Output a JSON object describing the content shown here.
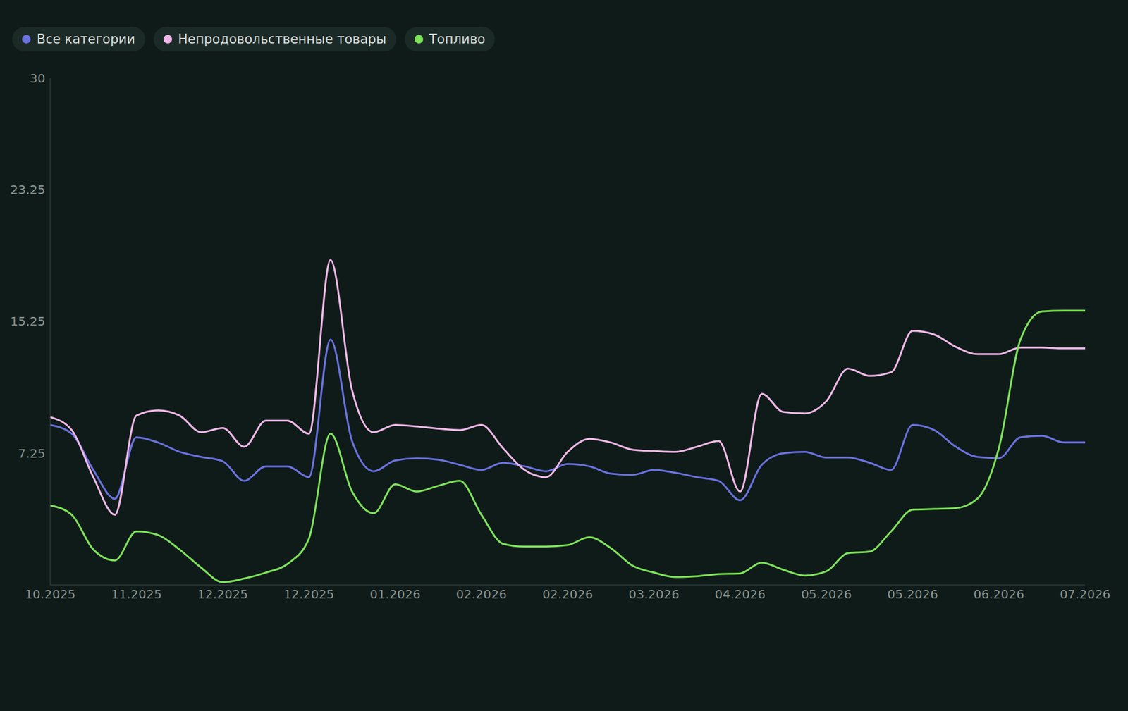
{
  "chart_data": {
    "type": "line",
    "categories": [
      "10.2025",
      null,
      null,
      null,
      "11.2025",
      null,
      null,
      null,
      "12.2025",
      null,
      null,
      null,
      "12.2025",
      null,
      null,
      null,
      "01.2026",
      null,
      null,
      null,
      "02.2026",
      null,
      null,
      null,
      "02.2026",
      null,
      null,
      null,
      "03.2026",
      null,
      null,
      null,
      "04.2026",
      null,
      null,
      null,
      "05.2026",
      null,
      null,
      null,
      "05.2026",
      null,
      null,
      null,
      "06.2026",
      null,
      null,
      null,
      "07.2026"
    ],
    "series": [
      {
        "name": "Все категории",
        "color": "#6b72e0",
        "values": [
          8.96,
          8.43,
          6.23,
          4.48,
          8.21,
          7.9,
          7.33,
          7.02,
          6.76,
          5.57,
          6.45,
          6.45,
          5.79,
          14.14,
          7.99,
          6.15,
          6.81,
          6.94,
          6.85,
          6.54,
          6.23,
          6.67,
          6.45,
          6.15,
          6.59,
          6.45,
          6.01,
          5.93,
          6.23,
          6.06,
          5.79,
          5.57,
          4.39,
          6.54,
          7.24,
          7.33,
          6.98,
          6.98,
          6.67,
          6.23,
          8.96,
          8.65,
          7.64,
          7.02,
          6.94,
          8.21,
          8.3,
          7.9,
          7.9
        ]
      },
      {
        "name": "Непродовольственные товары",
        "color": "#f0b8e8",
        "values": [
          9.44,
          8.65,
          5.79,
          3.51,
          9.53,
          9.84,
          9.53,
          8.52,
          8.78,
          7.64,
          9.22,
          9.22,
          8.43,
          18.97,
          11.07,
          8.52,
          8.96,
          8.87,
          8.74,
          8.65,
          8.96,
          7.55,
          6.23,
          5.79,
          7.33,
          8.12,
          7.9,
          7.46,
          7.38,
          7.33,
          7.64,
          7.99,
          4.92,
          10.85,
          9.75,
          9.66,
          10.41,
          12.38,
          11.94,
          12.16,
          14.67,
          14.45,
          13.7,
          13.26,
          13.26,
          13.66,
          13.66,
          13.61,
          13.61
        ]
      },
      {
        "name": "Топливо",
        "color": "#7ee35a",
        "values": [
          4.08,
          3.51,
          1.4,
          0.74,
          2.5,
          2.28,
          1.4,
          0.3,
          -0.58,
          -0.36,
          0.0,
          0.52,
          2.06,
          8.43,
          4.92,
          3.6,
          5.36,
          4.92,
          5.27,
          5.57,
          3.51,
          1.75,
          1.58,
          1.58,
          1.67,
          2.15,
          1.49,
          0.43,
          0.0,
          -0.27,
          -0.22,
          -0.09,
          -0.05,
          0.61,
          0.17,
          -0.18,
          0.08,
          1.18,
          1.27,
          2.5,
          3.82,
          3.86,
          3.91,
          4.48,
          7.55,
          14.14,
          15.85,
          15.9,
          15.9
        ]
      }
    ],
    "ylim": [
      -0.75,
      30
    ],
    "yticks": [
      30,
      23.25,
      15.25,
      7.25
    ],
    "grid": false,
    "legend": "top"
  }
}
